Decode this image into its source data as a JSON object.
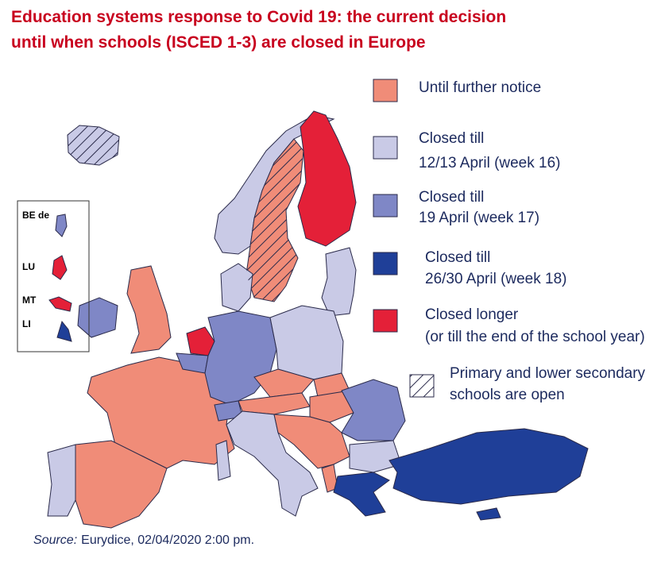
{
  "title": [
    "Education systems response to Covid 19: the current decision",
    "until when schools (ISCED 1-3) are closed in Europe"
  ],
  "legend": [
    {
      "label": [
        "Until further notice"
      ],
      "color": "#f08c78"
    },
    {
      "label": [
        "Closed till",
        "12/13 April (week 16)"
      ],
      "color": "#c9cae6"
    },
    {
      "label": [
        "Closed till",
        "19 April (week 17)"
      ],
      "color": "#7f87c6"
    },
    {
      "label": [
        "Closed till",
        "26/30 April (week 18)"
      ],
      "color": "#1f3f98"
    },
    {
      "label": [
        "Closed longer",
        "(or till the end of the school year)"
      ],
      "color": "#e42038"
    },
    {
      "label": [
        "Primary and lower secondary",
        "schools are open"
      ],
      "color": "#ffffff",
      "hatched": true
    }
  ],
  "insets": [
    "BE de",
    "LU",
    "MT",
    "LI"
  ],
  "source": {
    "label": "Source:",
    "text": "Eurydice, 02/04/2020 2:00 pm."
  }
}
